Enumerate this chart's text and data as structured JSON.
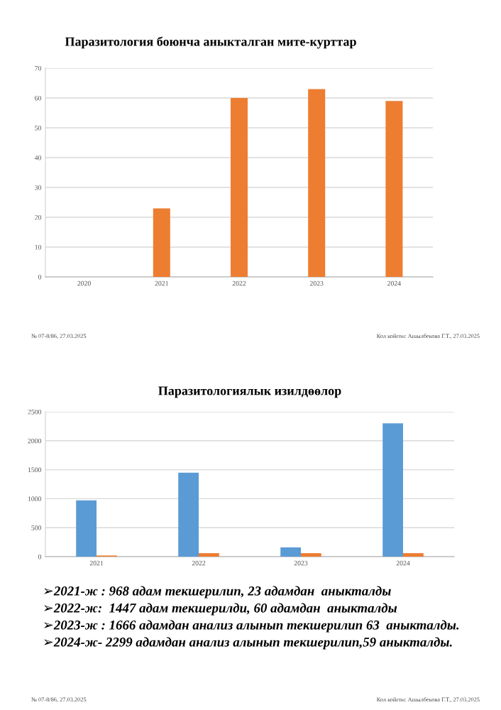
{
  "chart_data": [
    {
      "type": "bar",
      "title": "Паразитология боюнча аныкталган мите-курттар",
      "categories": [
        "2020",
        "2021",
        "2022",
        "2023",
        "2024"
      ],
      "series": [
        {
          "color": "#ed7d31",
          "values": [
            0,
            23,
            60,
            63,
            59
          ]
        }
      ],
      "ylim": [
        0,
        70
      ],
      "yticks": [
        0,
        10,
        20,
        30,
        40,
        50,
        60,
        70
      ],
      "grid": "y",
      "annotations": [
        "№ 07-8/86, 27.03.2025",
        "Кол койгон: Ашылбекова Г.Т., 27.03.2025"
      ]
    },
    {
      "type": "bar",
      "title": "Паразитологиялык изилдөөлор",
      "categories": [
        "2021",
        "2022",
        "2023",
        "2024"
      ],
      "series": [
        {
          "color": "#5b9bd5",
          "values": [
            970,
            1450,
            160,
            2300
          ]
        },
        {
          "color": "#ed7d31",
          "values": [
            20,
            60,
            60,
            60
          ]
        }
      ],
      "ylim": [
        0,
        2500
      ],
      "yticks": [
        0,
        500,
        1000,
        1500,
        2000,
        2500
      ],
      "grid": "y",
      "annotations": [
        "➢2021-ж : 968 адам текшерилип, 23 адамдан  аныкталды",
        "➢2022-ж:  1447 адам текшерилди, 60 адамдан  аныкталды",
        "➢2023-ж : 1666 адамдан анализ алынып текшерилип 63  аныкталды.",
        "➢2024-ж- 2299 адамдан анализ алынып текшерилип,59 аныкталды.",
        "№ 07-8/86, 27.03.2025",
        "Кол койгон: Ашылбекова Г.Т., 27.03.2025"
      ]
    }
  ]
}
